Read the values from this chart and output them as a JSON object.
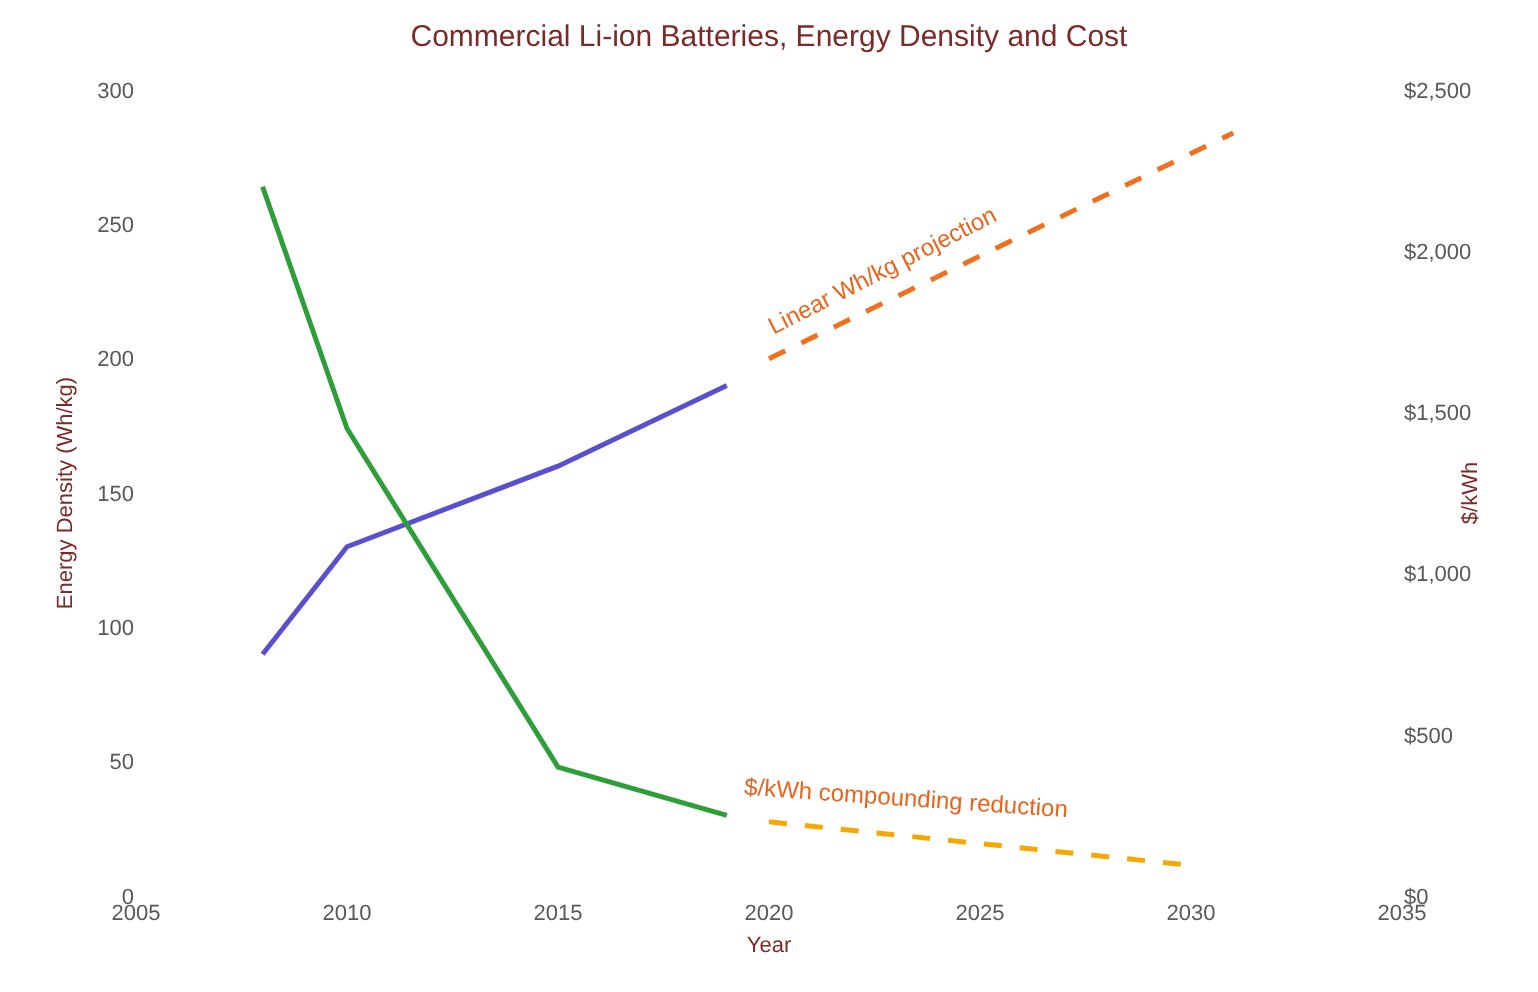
{
  "chart_data": {
    "type": "line",
    "title": "Commercial Li-ion Batteries, Energy Density and Cost",
    "xlabel": "Year",
    "ylabel": "Energy Density (Wh/kg)",
    "y2label": "$/kWh",
    "xlim": [
      2005,
      2035
    ],
    "xticks": [
      2005,
      2010,
      2015,
      2020,
      2025,
      2030,
      2035
    ],
    "ylim": [
      0,
      300
    ],
    "yticks": [
      0,
      50,
      100,
      150,
      200,
      250,
      300
    ],
    "y2lim": [
      0,
      2500
    ],
    "y2ticks": [
      {
        "value": 0,
        "label": "$0"
      },
      {
        "value": 500,
        "label": "$500"
      },
      {
        "value": 1000,
        "label": "$1,000"
      },
      {
        "value": 1500,
        "label": "$1,500"
      },
      {
        "value": 2000,
        "label": "$2,000"
      },
      {
        "value": 2500,
        "label": "$2,500"
      }
    ],
    "series": [
      {
        "color": "#5a4fcf",
        "x": [
          2008,
          2010,
          2015,
          2019
        ],
        "values": [
          90,
          130,
          160,
          190
        ],
        "line_style": "solid"
      },
      {
        "color": "#2e9e3a",
        "axis": "y2",
        "x": [
          2008,
          2010,
          2015,
          2019
        ],
        "values": [
          2200,
          1450,
          400,
          250
        ],
        "line_style": "solid"
      },
      {
        "color": "#f07020",
        "x": [
          2020,
          2031
        ],
        "values": [
          200,
          284
        ],
        "line_style": "dashed"
      },
      {
        "color": "#f5a800",
        "axis": "y2",
        "x": [
          2020,
          2030
        ],
        "values": [
          230,
          95
        ],
        "line_style": "dashed"
      }
    ],
    "annotations": [
      "Linear Wh/kg projection",
      "$/kWh compounding reduction"
    ],
    "marker": "none"
  }
}
